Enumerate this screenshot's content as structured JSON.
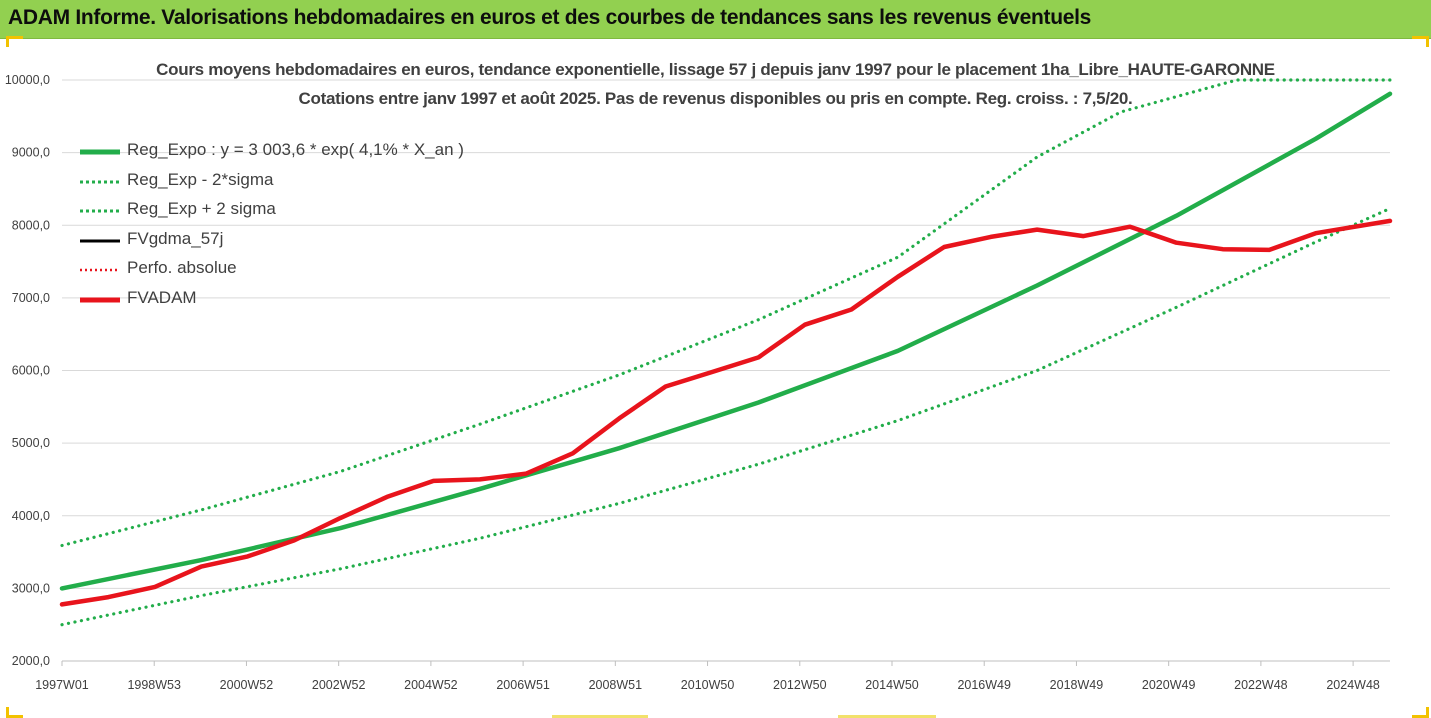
{
  "banner_title": "ADAM Informe. Valorisations hebdomadaires en euros et des courbes de tendances sans les revenus éventuels",
  "colors": {
    "banner": "#92d050",
    "reg_expo": "#22ad4a",
    "bands": "#22ad4a",
    "fvgdma": "#000000",
    "perfo": "#e8141c",
    "fvadam": "#e8141c",
    "grid": "#d9d9d9"
  },
  "chart_data": {
    "type": "line",
    "title_line1": "Cours moyens hebdomadaires en euros, tendance exponentielle, lissage 57 j depuis janv 1997 pour le placement 1ha_Libre_HAUTE-GARONNE",
    "title_line2": "Cotations entre janv 1997 et août 2025.  Pas de revenus disponibles ou pris en compte. Reg. croiss. : 7,5/20.",
    "x_ticks": [
      "1997W01",
      "1998W53",
      "2000W52",
      "2002W52",
      "2004W52",
      "2006W51",
      "2008W51",
      "2010W50",
      "2012W50",
      "2014W50",
      "2016W49",
      "2018W49",
      "2020W49",
      "2022W48",
      "2024W48"
    ],
    "x_range_years": [
      1997.0,
      2025.6
    ],
    "y_ticks": [
      "2000,0",
      "3000,0",
      "4000,0",
      "5000,0",
      "6000,0",
      "7000,0",
      "8000,0",
      "9000,0",
      "10000,0"
    ],
    "ylim": [
      2000,
      10000
    ],
    "grid": "horizontal",
    "legend_position": "top-left",
    "series": [
      {
        "name": "Reg_Expo : y = 3 003,6 * exp( 4,1% *  X_an )",
        "style": "solid-thick",
        "color": "#22ad4a",
        "x": [
          1997.0,
          2000.0,
          2003.0,
          2006.0,
          2009.0,
          2012.0,
          2015.0,
          2018.0,
          2021.0,
          2024.0,
          2025.6
        ],
        "y": [
          3000,
          3390,
          3830,
          4370,
          4930,
          5560,
          6270,
          7170,
          8130,
          9190,
          9810
        ]
      },
      {
        "name": "Reg_Exp - 2*sigma",
        "style": "dotted",
        "color": "#22ad4a",
        "x": [
          1997.0,
          2000.0,
          2003.0,
          2006.0,
          2009.0,
          2012.0,
          2015.0,
          2018.0,
          2021.0,
          2024.0,
          2025.6
        ],
        "y": [
          2500,
          2900,
          3270,
          3690,
          4170,
          4710,
          5310,
          6000,
          6870,
          7770,
          8230
        ]
      },
      {
        "name": "Reg_Exp + 2 sigma",
        "style": "dotted",
        "color": "#22ad4a",
        "x": [
          1997.0,
          2000.0,
          2003.0,
          2006.0,
          2009.0,
          2012.0,
          2015.0,
          2018.0,
          2019.8,
          2022.3,
          2025.6
        ],
        "y": [
          3590,
          4080,
          4610,
          5260,
          5940,
          6700,
          7560,
          8940,
          9560,
          10000,
          10000
        ]
      },
      {
        "name": "FVgdma_57j",
        "style": "solid",
        "color": "#000000",
        "x": [],
        "y": []
      },
      {
        "name": "Perfo. absolue",
        "style": "dotted",
        "color": "#e8141c",
        "x": [],
        "y": []
      },
      {
        "name": "FVADAM",
        "style": "solid-thick",
        "color": "#e8141c",
        "x": [
          1997.0,
          1998.0,
          1999.0,
          2000.0,
          2001.0,
          2002.0,
          2003.0,
          2004.0,
          2005.0,
          2006.0,
          2007.0,
          2008.0,
          2009.0,
          2010.0,
          2011.0,
          2012.0,
          2013.0,
          2014.0,
          2015.0,
          2016.0,
          2017.0,
          2018.0,
          2019.0,
          2020.0,
          2021.0,
          2022.0,
          2023.0,
          2024.0,
          2025.6
        ],
        "y": [
          2780,
          2880,
          3020,
          3300,
          3440,
          3660,
          3970,
          4260,
          4480,
          4500,
          4580,
          4860,
          5340,
          5780,
          5980,
          6180,
          6630,
          6840,
          7290,
          7700,
          7840,
          7940,
          7850,
          7980,
          7760,
          7670,
          7660,
          7890,
          8060
        ]
      }
    ]
  }
}
